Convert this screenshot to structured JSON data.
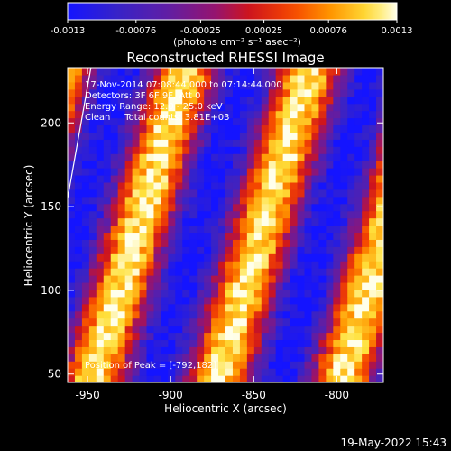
{
  "chart_data": {
    "type": "heatmap",
    "title": "Reconstructed RHESSI Image",
    "xlabel": "Heliocentric X (arcsec)",
    "ylabel": "Heliocentric Y (arcsec)",
    "xlim": [
      -962,
      -772
    ],
    "ylim": [
      45,
      233
    ],
    "x_ticks": [
      -950,
      -900,
      -850,
      -800
    ],
    "y_ticks": [
      50,
      100,
      150,
      200
    ],
    "colorbar": {
      "range": [
        -0.0013,
        0.0013
      ],
      "ticks": [
        -0.0013,
        -0.00076,
        -0.00025,
        0.00025,
        0.00076,
        0.0013
      ],
      "tick_labels": [
        "-0.0013",
        "-0.00076",
        "-0.00025",
        "0.00025",
        "0.00076",
        "0.0013"
      ],
      "label": "(photons cm⁻² s⁻¹ asec⁻²)"
    },
    "annotations": [
      "17-Nov-2014 07:08:44.000 to 07:14:44.000",
      "Detectors: 3F 6F 9F, Att 0",
      "Energy Range: 12.0 - 25.0 keV",
      "Clean     Total counts: 3.81E+03"
    ],
    "peak_label": "Position of Peak = [-792,182]",
    "stripes": {
      "orientation": "diagonal, tilted toward upper-right",
      "bright_ridges_x_at_y_100": [
        -931,
        -857,
        -780
      ],
      "period_arcsec": 75
    },
    "limb_line": [
      [
        -962,
        155
      ],
      [
        -948,
        233
      ]
    ]
  },
  "footer": {
    "date": "19-May-2022 15:43"
  }
}
